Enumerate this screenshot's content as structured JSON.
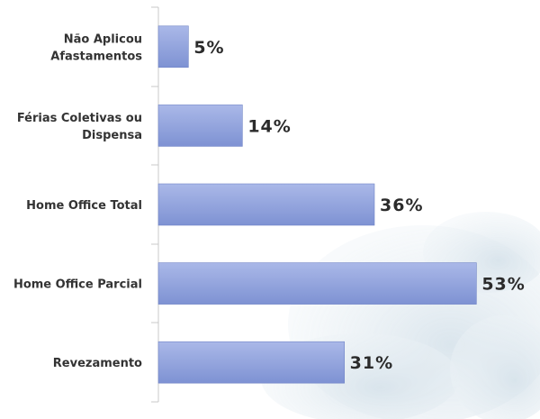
{
  "chart_data": {
    "type": "bar",
    "orientation": "horizontal",
    "categories": [
      [
        "Não Aplicou",
        "Afastamentos"
      ],
      [
        "Férias Coletivas ou",
        "Dispensa"
      ],
      [
        "Home Office Total"
      ],
      [
        "Home Office Parcial"
      ],
      [
        "Revezamento"
      ]
    ],
    "values": [
      5,
      14,
      36,
      53,
      31
    ],
    "value_labels": [
      "5%",
      "14%",
      "36%",
      "53%",
      "31%"
    ],
    "xlim": [
      0,
      60
    ],
    "grid": false,
    "legend": "none",
    "colors": {
      "bar_top": "#aab8e8",
      "bar_bottom": "#7e92d3",
      "bar_border": "#7084c6",
      "axis": "#c8c8c8",
      "background_blob": "#d6e3ec"
    }
  }
}
